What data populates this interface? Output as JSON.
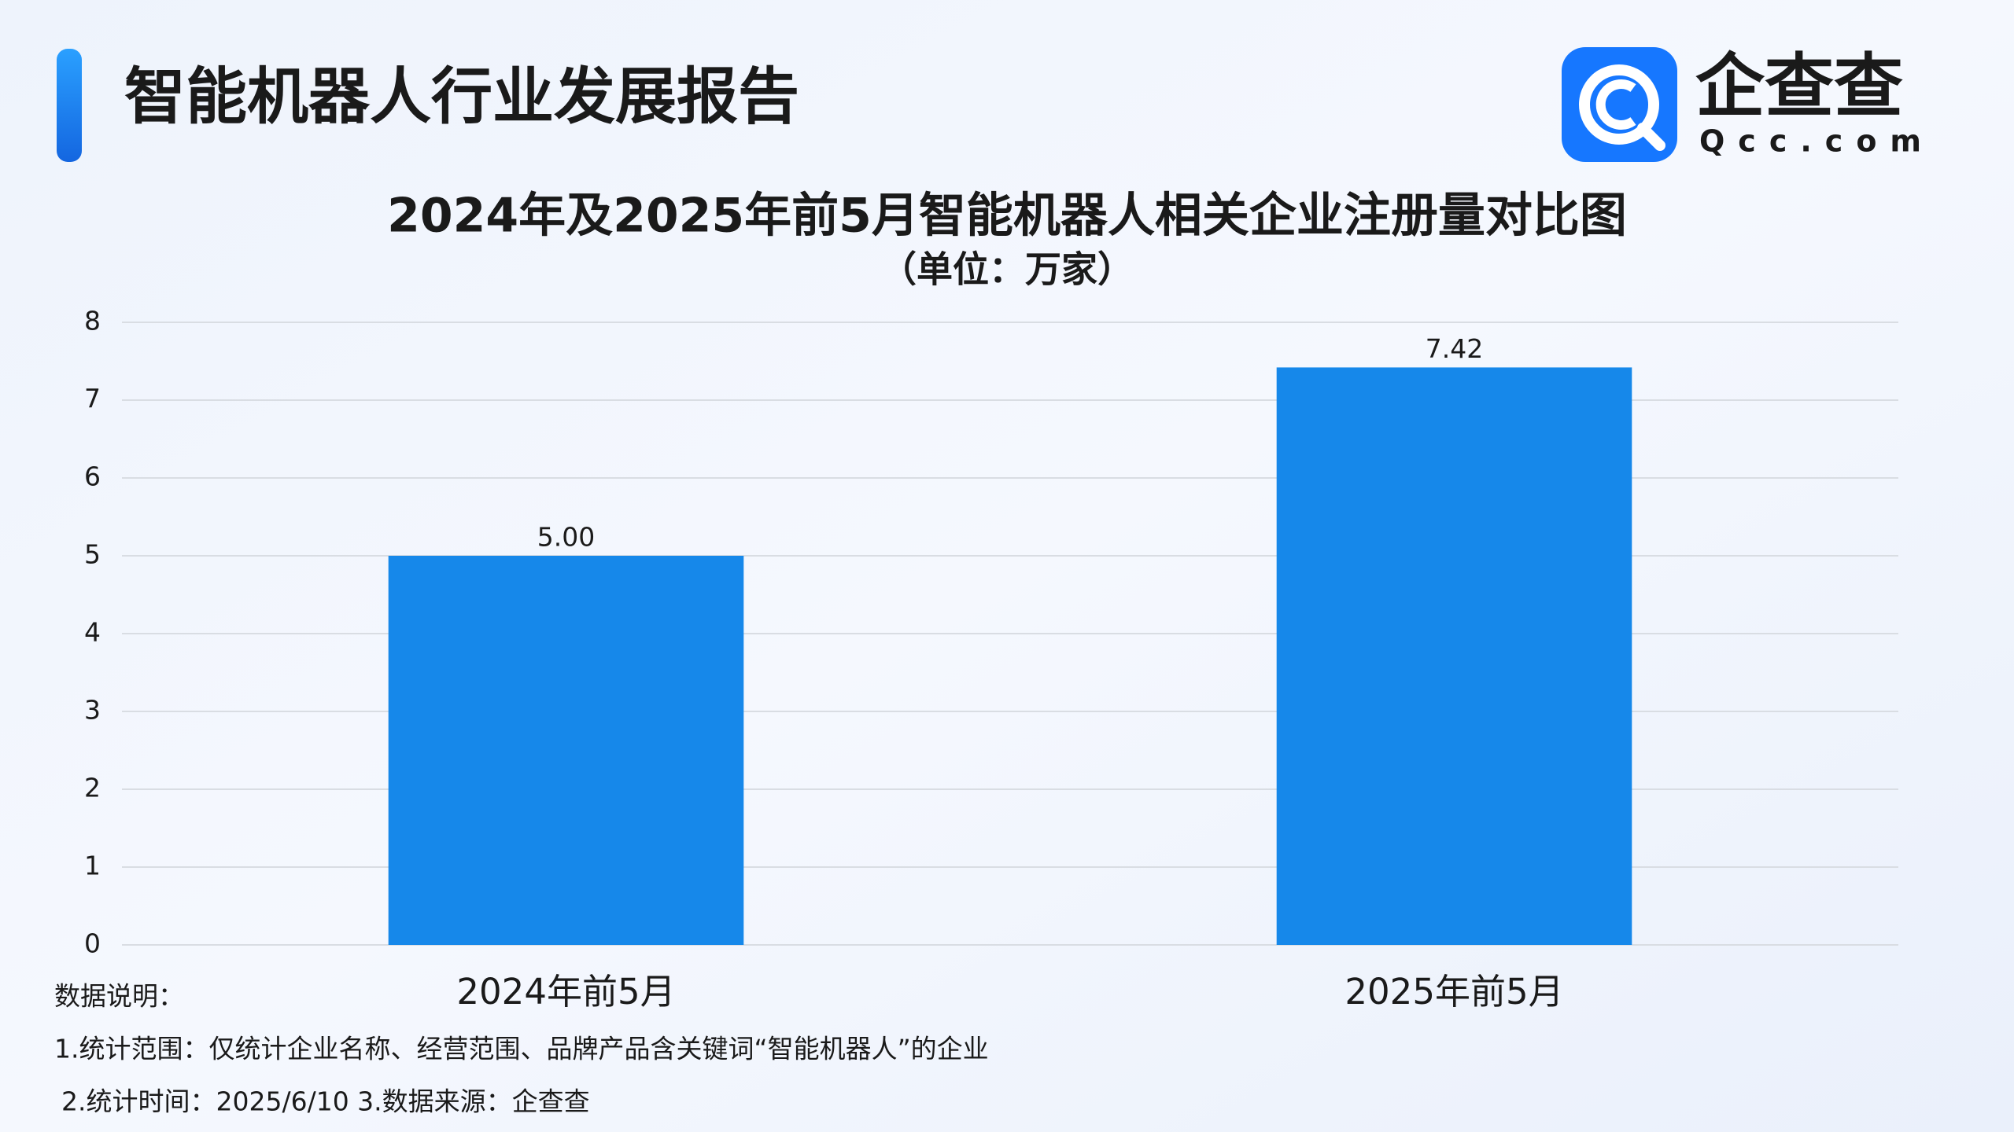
{
  "header": {
    "title": "智能机器人行业发展报告",
    "logo_text": "企查查",
    "logo_sub": "Qcc.com"
  },
  "chart_data": {
    "type": "bar",
    "title": "2024年及2025年前5月智能机器人相关企业注册量对比图",
    "subtitle": "（单位：万家）",
    "categories": [
      "2024年前5月",
      "2025年前5月"
    ],
    "values": [
      5.0,
      7.42
    ],
    "value_labels": [
      "5.00",
      "7.42"
    ],
    "color": "#1688ea",
    "ylim": [
      0,
      8
    ],
    "yticks": [
      0,
      1,
      2,
      3,
      4,
      5,
      6,
      7,
      8
    ],
    "grid": true
  },
  "notes": [
    "数据说明：",
    "1.统计范围：仅统计企业名称、经营范围、品牌产品含关键词“智能机器人”的企业",
    "2.统计时间：2025/6/10 3.数据来源：企查查"
  ]
}
